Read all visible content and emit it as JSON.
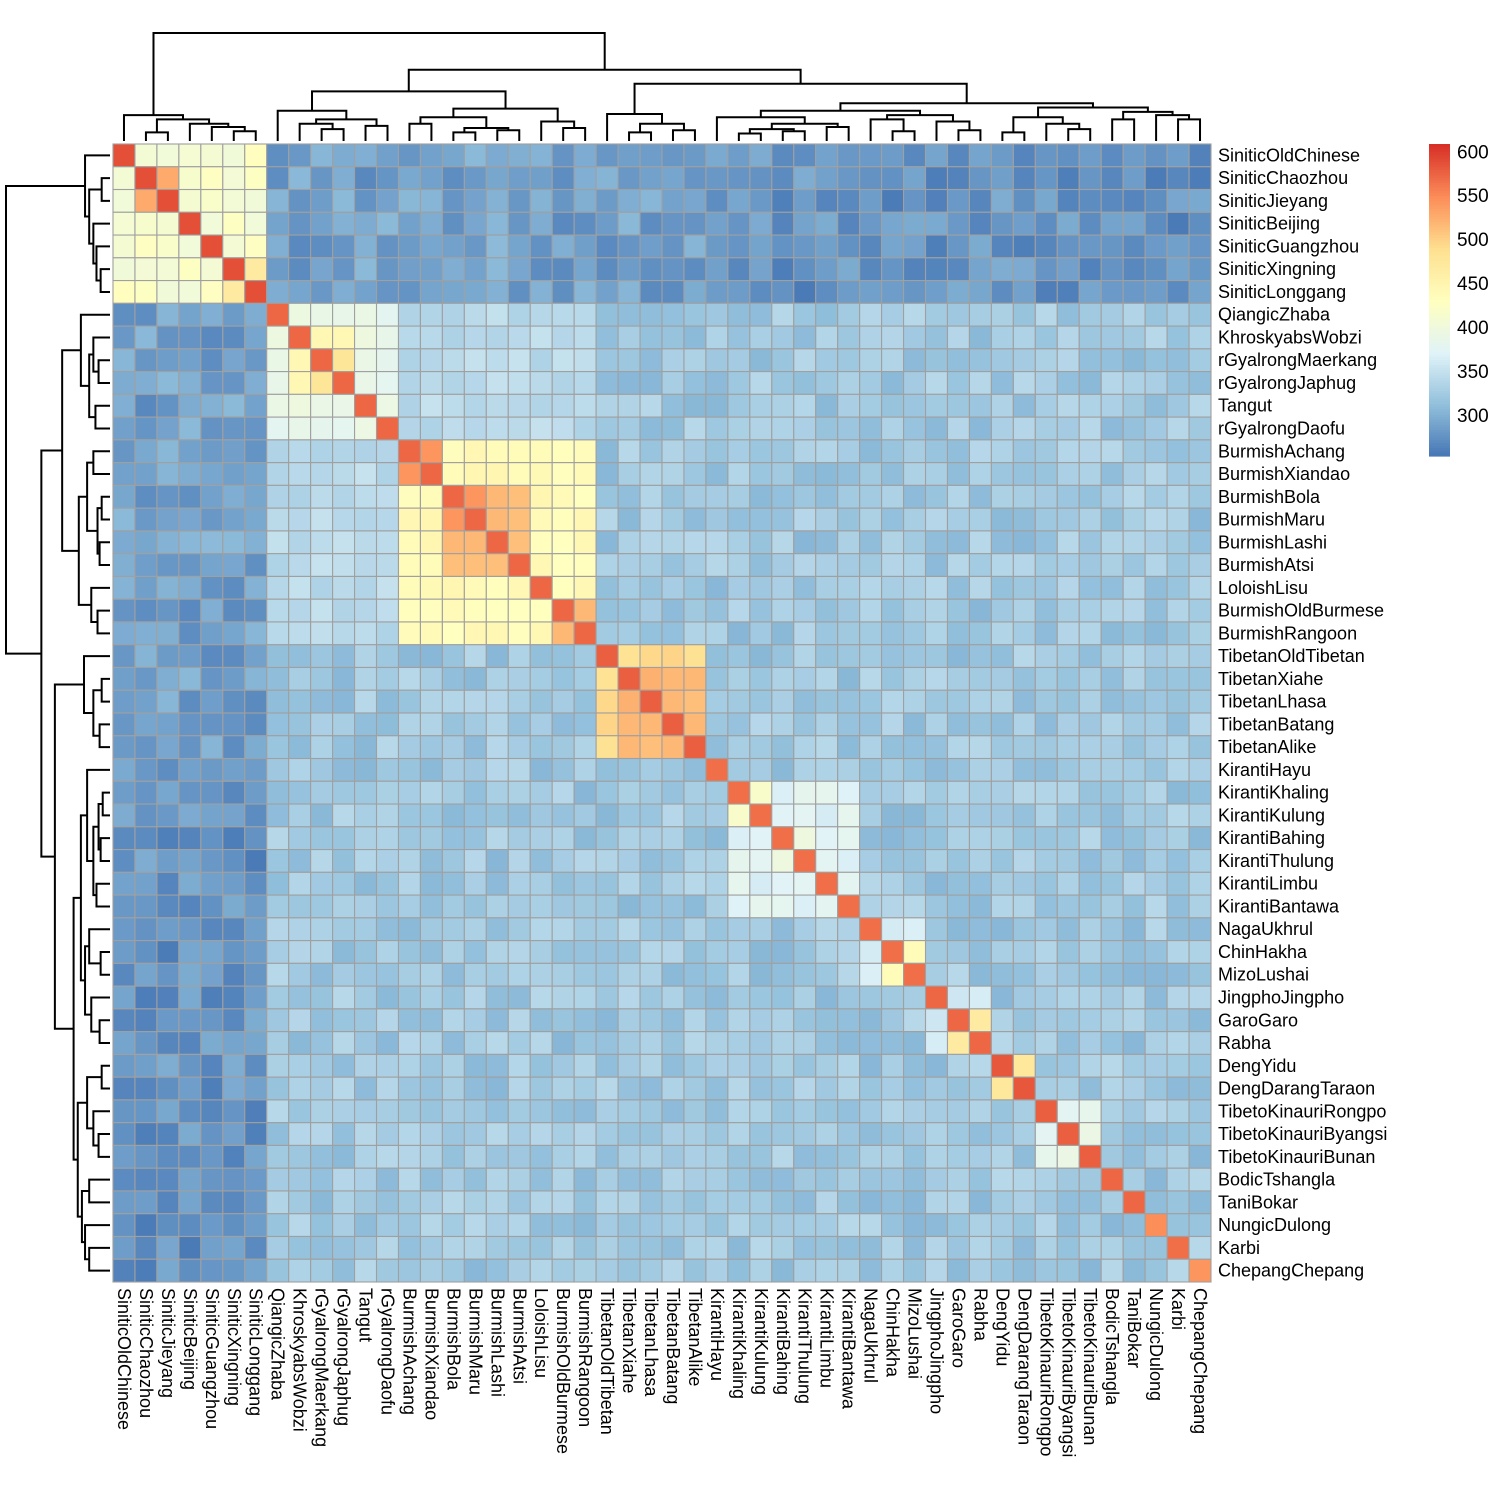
{
  "chart_data": {
    "type": "heatmap",
    "labels": [
      "SiniticOldChinese",
      "SiniticChaozhou",
      "SiniticJieyang",
      "SiniticBeijing",
      "SiniticGuangzhou",
      "SiniticXingning",
      "SiniticLonggang",
      "QiangicZhaba",
      "KhroskyabsWobzi",
      "rGyalrongMaerkang",
      "rGyalrongJaphug",
      "Tangut",
      "rGyalrongDaofu",
      "BurmishAchang",
      "BurmishXiandao",
      "BurmishBola",
      "BurmishMaru",
      "BurmishLashi",
      "BurmishAtsi",
      "LoloishLisu",
      "BurmishOldBurmese",
      "BurmishRangoon",
      "TibetanOldTibetan",
      "TibetanXiahe",
      "TibetanLhasa",
      "TibetanBatang",
      "TibetanAlike",
      "KirantiHayu",
      "KirantiKhaling",
      "KirantiKulung",
      "KirantiBahing",
      "KirantiThulung",
      "KirantiLimbu",
      "KirantiBantawa",
      "NagaUkhrul",
      "ChinHakha",
      "MizoLushai",
      "JingphoJingpho",
      "GaroGaro",
      "Rabha",
      "DengYidu",
      "DengDarangTaraon",
      "TibetoKinauriRongpo",
      "TibetoKinauriByangsi",
      "TibetoKinauriBunan",
      "BodicTshangla",
      "TaniBokar",
      "NungicDulong",
      "Karbi",
      "ChepangChepang"
    ],
    "groups": [
      {
        "members": [
          0,
          1,
          2,
          3,
          4,
          5,
          6
        ],
        "within": 420,
        "diag": 590,
        "hot_pairs": [
          [
            1,
            2,
            530
          ],
          [
            5,
            6,
            470
          ]
        ]
      },
      {
        "members": [
          7,
          8,
          9,
          10,
          11,
          12
        ],
        "within": 390,
        "diag": 575,
        "hot_pairs": [
          [
            9,
            10,
            480
          ],
          [
            8,
            9,
            445
          ],
          [
            8,
            10,
            445
          ]
        ]
      },
      {
        "members": [
          13,
          14,
          15,
          16,
          17,
          18,
          19,
          20,
          21
        ],
        "within": 440,
        "diag": 575,
        "hot_pairs": [
          [
            13,
            14,
            545
          ],
          [
            15,
            16,
            545
          ],
          [
            15,
            17,
            520
          ],
          [
            16,
            17,
            520
          ],
          [
            15,
            18,
            515
          ],
          [
            16,
            18,
            515
          ],
          [
            17,
            18,
            515
          ],
          [
            20,
            21,
            520
          ]
        ]
      },
      {
        "members": [
          22,
          23,
          24,
          25,
          26
        ],
        "within": 490,
        "diag": 580,
        "hot_pairs": [
          [
            23,
            24,
            525
          ],
          [
            24,
            25,
            520
          ],
          [
            23,
            25,
            520
          ],
          [
            25,
            26,
            520
          ],
          [
            23,
            26,
            520
          ],
          [
            24,
            26,
            515
          ]
        ]
      },
      {
        "members": [
          28,
          29,
          30,
          31,
          32,
          33
        ],
        "within": 375,
        "diag": 570,
        "hot_pairs": [
          [
            28,
            29,
            420
          ],
          [
            30,
            31,
            400
          ]
        ]
      },
      {
        "members": [
          34,
          35,
          36
        ],
        "within": 370,
        "diag": 570,
        "hot_pairs": [
          [
            35,
            36,
            440
          ]
        ]
      },
      {
        "members": [
          37,
          38,
          39
        ],
        "within": 360,
        "diag": 575,
        "hot_pairs": [
          [
            38,
            39,
            470
          ]
        ]
      },
      {
        "members": [
          40,
          41
        ],
        "within": 470,
        "diag": 585,
        "hot_pairs": []
      },
      {
        "members": [
          42,
          43,
          44
        ],
        "within": 385,
        "diag": 580,
        "hot_pairs": []
      }
    ],
    "diagonal_other": {
      "27": 570,
      "45": 575,
      "46": 575,
      "47": 550,
      "48": 570,
      "49": 545
    },
    "background": {
      "sinitic_vs_other": 290,
      "sinitic_vs_tb_low": 275,
      "tb_block_between": 345,
      "tb_background": 325
    },
    "value_range": [
      255,
      610
    ],
    "colorbar": {
      "ticks": [
        300,
        350,
        400,
        450,
        500,
        550,
        600
      ]
    },
    "colors": [
      "#4575B4",
      "#91BFDB",
      "#E0F3F8",
      "#FFFFBF",
      "#FEE090",
      "#FC8D59",
      "#D73027"
    ],
    "cell_border_color": "#A0A0A0",
    "dendrogram": "hierarchical clustering on rows and columns",
    "legend_position": "top-right",
    "xlabel": "",
    "ylabel": "",
    "title": ""
  }
}
